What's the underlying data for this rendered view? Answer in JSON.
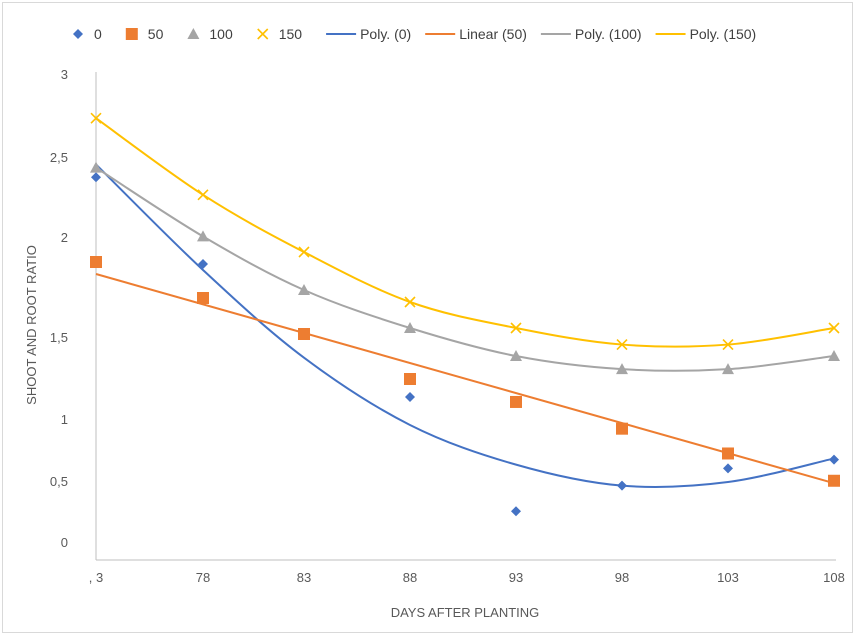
{
  "chart_data": {
    "type": "scatter",
    "xlabel": "DAYS AFTER PLANTING",
    "ylabel": "SHOOT AND ROOT RATIO",
    "x_tick_labels": [
      ", 3",
      "78",
      "83",
      "88",
      "93",
      "98",
      "103",
      "108"
    ],
    "y_tick_labels": [
      "0",
      "0,5",
      "1",
      "1,5",
      "2",
      "2,5",
      "3"
    ],
    "legend_position": "top",
    "grid": false,
    "series": [
      {
        "name": "0",
        "marker": "diamond",
        "color": "#4472C4",
        "x": [
          73,
          78,
          83,
          88,
          93,
          98,
          103,
          108
        ],
        "y": [
          2.38,
          1.87,
          null,
          1.14,
          0.26,
          0.47,
          0.61,
          0.68
        ]
      },
      {
        "name": "50",
        "marker": "square",
        "color": "#ED7D31",
        "x": [
          73,
          78,
          83,
          88,
          93,
          98,
          103,
          108
        ],
        "y": [
          1.88,
          1.7,
          1.52,
          1.25,
          1.11,
          0.93,
          0.73,
          0.51
        ]
      },
      {
        "name": "100",
        "marker": "triangle",
        "color": "#A5A5A5",
        "x": [
          73,
          78,
          83,
          88,
          93,
          98,
          103,
          108
        ],
        "y": [
          2.44,
          2.01,
          1.74,
          1.55,
          1.39,
          1.31,
          1.31,
          1.39
        ]
      },
      {
        "name": "150",
        "marker": "x",
        "color": "#FFC000",
        "x": [
          73,
          78,
          83,
          88,
          93,
          98,
          103,
          108
        ],
        "y": [
          2.74,
          2.27,
          1.93,
          1.68,
          1.55,
          1.46,
          1.46,
          1.55
        ]
      }
    ],
    "trendlines": [
      {
        "name": "Poly. (0)",
        "kind": "polynomial",
        "color": "#4472C4",
        "x": [
          73,
          78,
          83,
          88,
          93,
          98,
          103,
          108
        ],
        "y": [
          2.46,
          1.84,
          1.38,
          0.96,
          0.64,
          0.47,
          0.5,
          0.69
        ]
      },
      {
        "name": "Linear (50)",
        "kind": "linear",
        "color": "#ED7D31",
        "x": [
          73,
          108
        ],
        "y": [
          1.82,
          0.49
        ]
      },
      {
        "name": "Poly. (100)",
        "kind": "polynomial",
        "color": "#A5A5A5",
        "x": [
          73,
          78,
          83,
          88,
          93,
          98,
          103,
          108
        ],
        "y": [
          2.44,
          2.01,
          1.74,
          1.55,
          1.39,
          1.31,
          1.31,
          1.39
        ]
      },
      {
        "name": "Poly. (150)",
        "kind": "polynomial",
        "color": "#FFC000",
        "x": [
          73,
          78,
          83,
          88,
          93,
          98,
          103,
          108
        ],
        "y": [
          2.74,
          2.27,
          1.93,
          1.68,
          1.55,
          1.46,
          1.46,
          1.55
        ]
      }
    ]
  }
}
